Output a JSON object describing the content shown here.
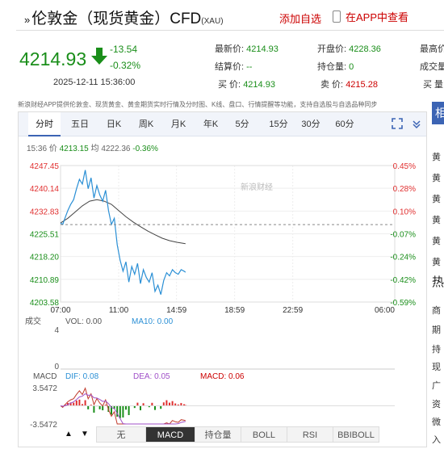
{
  "header": {
    "title": "伦敦金（现货黄金）CFD",
    "title_suffix": "(XAU)",
    "add_favorite": "添加自选",
    "view_in_app": "在APP中查看"
  },
  "quote": {
    "price": "4214.93",
    "change": "-13.54",
    "change_pct": "-0.32%",
    "datetime": "2025-12-11 15:36:00",
    "latest_label": "最新价:",
    "latest_value": "4214.93",
    "open_label": "开盘价:",
    "open_value": "4228.36",
    "high_label": "最高价:",
    "settle_label": "结算价:",
    "settle_value": "--",
    "position_label": "持仓量:",
    "position_value": "0",
    "volume_label": "成交量:",
    "buy_label": "买  价:",
    "buy_value": "4214.93",
    "sell_label": "卖  价:",
    "sell_value": "4215.28",
    "high_cut": "买  量"
  },
  "notice": "新浪财经APP提供伦敦金、现货黄金、黄金期货实时行情及分时图、K线、盘口、行情提醒等功能，支持自选股与自选品种同步",
  "chart_tabs": [
    "分时",
    "五日",
    "日K",
    "周K",
    "月K",
    "年K",
    "5分",
    "15分",
    "30分",
    "60分"
  ],
  "active_tab": "分时",
  "info": {
    "time": "15:36",
    "price_label": "价",
    "price": "4213.15",
    "avg_label": "均",
    "avg": "4222.36",
    "pct": "-0.36%"
  },
  "watermark": "新浪财经",
  "chart_data": {
    "type": "line",
    "price_axis": [
      "4247.45",
      "4240.14",
      "4232.83",
      "4225.51",
      "4218.20",
      "4210.89",
      "4203.58"
    ],
    "pct_axis": [
      "0.45%",
      "0.28%",
      "0.10%",
      "-0.07%",
      "-0.24%",
      "-0.42%",
      "-0.59%"
    ],
    "x_ticks": [
      "07:00",
      "11:00",
      "14:59",
      "18:59",
      "22:59",
      "06:00"
    ],
    "prev_close": 4228.47,
    "series": [
      {
        "name": "价",
        "x_hours": [
          7.0,
          7.15,
          7.3,
          7.5,
          7.7,
          7.9,
          8.1,
          8.3,
          8.5,
          8.7,
          8.9,
          9.1,
          9.3,
          9.5,
          9.7,
          9.9,
          10.1,
          10.3,
          10.5,
          10.7,
          10.9,
          11.1,
          11.3,
          11.5,
          11.7,
          11.9,
          12.1,
          12.3,
          12.5,
          12.7,
          12.9,
          13.1,
          13.3,
          13.5,
          13.7,
          13.9,
          14.1,
          14.3,
          14.5,
          14.7,
          14.9,
          15.1,
          15.3,
          15.5,
          15.6
        ],
        "values": [
          4229.0,
          4228.5,
          4230.5,
          4233.0,
          4235.0,
          4236.5,
          4240.0,
          4243.0,
          4241.5,
          4246.0,
          4240.0,
          4243.5,
          4237.0,
          4241.0,
          4238.0,
          4236.0,
          4239.5,
          4233.0,
          4228.5,
          4230.5,
          4222.0,
          4217.0,
          4213.5,
          4216.5,
          4210.0,
          4215.0,
          4212.5,
          4216.0,
          4209.5,
          4214.0,
          4211.5,
          4210.0,
          4213.0,
          4207.0,
          4209.0,
          4206.0,
          4210.5,
          4213.0,
          4212.0,
          4214.0,
          4213.0,
          4212.5,
          4214.0,
          4213.5,
          4213.15
        ]
      },
      {
        "name": "均",
        "x_hours": [
          7.0,
          7.5,
          8.0,
          8.5,
          9.0,
          9.5,
          10.0,
          10.5,
          11.0,
          11.5,
          12.0,
          12.5,
          13.0,
          13.5,
          14.0,
          14.5,
          15.0,
          15.6
        ],
        "values": [
          4229.0,
          4230.5,
          4232.5,
          4234.5,
          4236.0,
          4236.5,
          4236.0,
          4235.0,
          4233.0,
          4231.0,
          4229.3,
          4227.8,
          4226.4,
          4225.2,
          4224.1,
          4223.3,
          4222.8,
          4222.36
        ]
      }
    ],
    "volume": {
      "label": "成交",
      "vol_label": "VOL: 0.00",
      "ma_label": "MA10: 0.00",
      "axis_top": "4",
      "axis_bottom": "0"
    },
    "macd": {
      "label": "MACD",
      "dif_label": "DIF: 0.08",
      "dea_label": "DEA: 0.05",
      "macd_label": "MACD: 0.06",
      "axis_top": "3.5472",
      "axis_bottom": "-3.5472"
    }
  },
  "bottom_tabs": [
    "无",
    "MACD",
    "持仓量",
    "BOLL",
    "RSI",
    "BBIBOLL"
  ],
  "active_bottom_tab": "MACD",
  "right_panel": {
    "head": "相",
    "items": [
      "黄",
      "黄",
      "黄",
      "黄",
      "黄",
      "黄"
    ],
    "head2": "热",
    "items2": [
      "商",
      "期",
      "持",
      "现",
      "广",
      "资",
      "微",
      "入"
    ]
  },
  "colors": {
    "up": "#e03030",
    "down": "#1a8e1a",
    "price_line": "#2a8fd5",
    "avg_line": "#444444",
    "tab_active": "#3c64b4"
  }
}
